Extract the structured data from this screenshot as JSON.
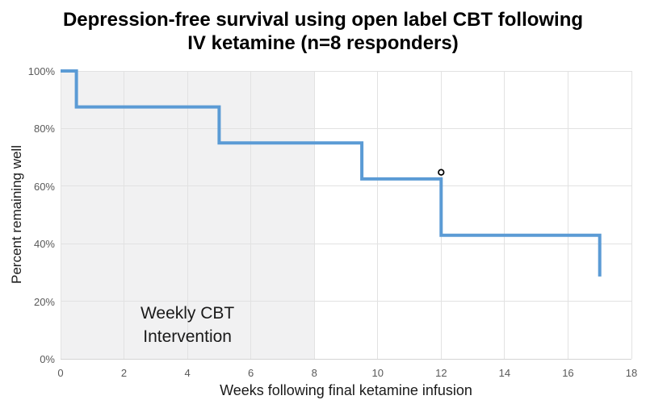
{
  "title": "Depression-free survival using open label CBT following IV ketamine (n=8 responders)",
  "chart_data": {
    "type": "line",
    "subtype": "kaplan-meier-step",
    "title": "Depression-free survival using open label CBT following IV ketamine (n=8 responders)",
    "xlabel": "Weeks following final ketamine infusion",
    "ylabel": "Percent remaining well",
    "xlim": [
      0,
      18
    ],
    "ylim": [
      0,
      100
    ],
    "x_ticks": [
      0,
      2,
      4,
      6,
      8,
      10,
      12,
      14,
      16,
      18
    ],
    "y_ticks": [
      0,
      20,
      40,
      60,
      80,
      100
    ],
    "y_tick_suffix": "%",
    "grid": true,
    "legend": "none",
    "line_color": "#5B9BD5",
    "line_width": 4,
    "step_points": [
      [
        0,
        100
      ],
      [
        0.5,
        100
      ],
      [
        0.5,
        87.5
      ],
      [
        5,
        87.5
      ],
      [
        5,
        75
      ],
      [
        9.5,
        75
      ],
      [
        9.5,
        62.5
      ],
      [
        12,
        62.5
      ],
      [
        12,
        42.9
      ],
      [
        17,
        42.9
      ],
      [
        17,
        28.6
      ]
    ],
    "censor_markers": [
      {
        "x": 12,
        "y": 64.8,
        "shape": "open-circle"
      }
    ],
    "shaded_region": {
      "x_start": 0,
      "x_end": 8,
      "label": "Weekly CBT Intervention",
      "color": "#f1f1f2"
    }
  }
}
